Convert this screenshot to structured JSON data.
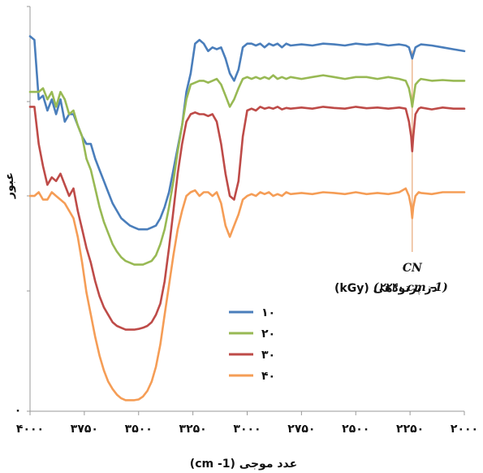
{
  "chart_data": {
    "type": "line",
    "title": "",
    "xlabel": "عدد موجی (cm -1)",
    "ylabel": "عبور",
    "x_reversed": true,
    "xlim": [
      2000,
      4000
    ],
    "xticks": [
      4000,
      3750,
      3500,
      3250,
      3000,
      2750,
      2500,
      2250,
      2000
    ],
    "xtick_labels": [
      "۴۰۰۰",
      "۳۷۵۰",
      "۳۵۰۰",
      "۳۲۵۰",
      "۳۰۰۰",
      "۲۷۵۰",
      "۲۵۰۰",
      "۲۲۵۰",
      "۲۰۰۰"
    ],
    "ytick_labels": [
      "۰"
    ],
    "ylim": [
      0,
      100
    ],
    "legend": {
      "title": "دز پرتودهی (kGy)",
      "placement": "center"
    },
    "annotation": {
      "label": "CN",
      "sublabel": "(۲۲۴۰ cm -1)",
      "x": 2240
    },
    "series": [
      {
        "name": "۱۰",
        "color": "#4a7ebb",
        "x": [
          4000,
          3980,
          3960,
          3940,
          3920,
          3900,
          3880,
          3860,
          3840,
          3820,
          3800,
          3780,
          3760,
          3740,
          3720,
          3700,
          3680,
          3660,
          3640,
          3620,
          3600,
          3580,
          3560,
          3540,
          3520,
          3500,
          3480,
          3460,
          3440,
          3420,
          3400,
          3380,
          3360,
          3340,
          3320,
          3300,
          3280,
          3260,
          3240,
          3220,
          3200,
          3180,
          3160,
          3140,
          3120,
          3100,
          3080,
          3060,
          3040,
          3020,
          3000,
          2980,
          2960,
          2940,
          2920,
          2900,
          2880,
          2860,
          2840,
          2820,
          2800,
          2750,
          2700,
          2650,
          2600,
          2550,
          2500,
          2450,
          2400,
          2350,
          2300,
          2270,
          2255,
          2245,
          2240,
          2235,
          2225,
          2210,
          2200,
          2150,
          2100,
          2050,
          2000
        ],
        "y": [
          99,
          98,
          82,
          83,
          79,
          82,
          78,
          82,
          76,
          78,
          78,
          75,
          72,
          70,
          70,
          66,
          63,
          60,
          57,
          54,
          52,
          50,
          49,
          48,
          47.5,
          47,
          47,
          47,
          47.5,
          48,
          50,
          53,
          57,
          63,
          69,
          75,
          84,
          89,
          97,
          98,
          97,
          95,
          96,
          95.5,
          96,
          93,
          89,
          87,
          90,
          96,
          97,
          97,
          96.5,
          97,
          96,
          97,
          96.5,
          97,
          96,
          97,
          96.5,
          96.8,
          96.5,
          97,
          96.8,
          96.5,
          97,
          96.7,
          97,
          96.5,
          96.8,
          96.5,
          96,
          94,
          93,
          94,
          96,
          96.5,
          96.8,
          96.5,
          96,
          95.5,
          95
        ]
      },
      {
        "name": "۲۰",
        "color": "#98b954",
        "x": [
          4000,
          3980,
          3960,
          3940,
          3920,
          3900,
          3880,
          3860,
          3840,
          3820,
          3800,
          3780,
          3760,
          3740,
          3720,
          3700,
          3680,
          3660,
          3640,
          3620,
          3600,
          3580,
          3560,
          3540,
          3520,
          3500,
          3480,
          3460,
          3440,
          3420,
          3400,
          3380,
          3360,
          3340,
          3320,
          3300,
          3280,
          3260,
          3240,
          3220,
          3200,
          3180,
          3160,
          3140,
          3120,
          3100,
          3080,
          3060,
          3040,
          3020,
          3000,
          2980,
          2960,
          2940,
          2920,
          2900,
          2880,
          2860,
          2840,
          2820,
          2800,
          2750,
          2700,
          2650,
          2600,
          2550,
          2500,
          2450,
          2400,
          2350,
          2300,
          2270,
          2255,
          2245,
          2240,
          2235,
          2225,
          2210,
          2200,
          2150,
          2100,
          2050,
          2000
        ],
        "y": [
          84,
          84,
          84,
          85,
          82,
          84,
          80,
          84,
          82,
          78,
          79,
          75,
          72,
          66,
          63,
          58,
          53,
          49,
          46,
          43,
          41,
          39.5,
          38.5,
          38,
          37.5,
          37.5,
          37.5,
          38,
          38.5,
          40,
          43,
          47,
          53,
          60,
          68,
          75,
          82,
          86,
          86.5,
          87,
          87,
          86.5,
          87,
          87.5,
          86,
          83,
          80,
          82,
          85,
          87.5,
          88,
          87.5,
          88,
          87.5,
          88,
          87.5,
          88.5,
          87.5,
          88,
          87.5,
          88,
          87.5,
          88,
          88.5,
          88,
          87.5,
          88,
          88,
          87.5,
          88,
          87.5,
          87,
          85,
          82,
          80,
          82,
          86,
          87,
          87.5,
          87,
          87.2,
          87,
          87
        ]
      },
      {
        "name": "۳۰",
        "color": "#be4b48",
        "x": [
          4000,
          3980,
          3960,
          3940,
          3920,
          3900,
          3880,
          3860,
          3840,
          3820,
          3800,
          3780,
          3760,
          3740,
          3720,
          3700,
          3680,
          3660,
          3640,
          3620,
          3600,
          3580,
          3560,
          3540,
          3520,
          3500,
          3480,
          3460,
          3440,
          3420,
          3400,
          3380,
          3360,
          3340,
          3320,
          3300,
          3280,
          3260,
          3240,
          3220,
          3200,
          3180,
          3160,
          3140,
          3120,
          3100,
          3080,
          3060,
          3040,
          3020,
          3000,
          2980,
          2960,
          2940,
          2920,
          2900,
          2880,
          2860,
          2840,
          2820,
          2800,
          2750,
          2700,
          2650,
          2600,
          2550,
          2500,
          2450,
          2400,
          2350,
          2300,
          2270,
          2255,
          2245,
          2240,
          2235,
          2225,
          2210,
          2200,
          2150,
          2100,
          2050,
          2000
        ],
        "y": [
          80,
          80,
          70,
          64,
          59,
          61,
          60,
          62,
          59,
          56,
          58,
          52,
          47,
          42,
          38,
          33,
          29,
          26,
          24,
          22,
          21,
          20.5,
          20,
          20,
          20,
          20.2,
          20.5,
          21,
          22,
          24,
          27,
          33,
          42,
          52,
          62,
          70,
          76,
          78,
          78.5,
          78,
          78,
          77.5,
          78,
          76,
          70,
          62,
          56,
          55,
          60,
          72,
          79,
          79.5,
          79,
          80,
          79.5,
          79.8,
          79.5,
          80,
          79.3,
          79.7,
          79.5,
          79.8,
          79.5,
          80,
          79.7,
          79.5,
          80,
          79.6,
          79.8,
          79.5,
          79.8,
          79.5,
          76,
          72,
          68,
          72,
          78,
          79.5,
          79.8,
          79.3,
          79.8,
          79.5,
          79.5
        ]
      },
      {
        "name": "۴۰",
        "color": "#f59d56",
        "x": [
          4000,
          3980,
          3960,
          3940,
          3920,
          3900,
          3880,
          3860,
          3840,
          3820,
          3800,
          3780,
          3760,
          3740,
          3720,
          3700,
          3680,
          3660,
          3640,
          3620,
          3600,
          3580,
          3560,
          3540,
          3520,
          3500,
          3480,
          3460,
          3440,
          3420,
          3400,
          3380,
          3360,
          3340,
          3320,
          3300,
          3280,
          3260,
          3240,
          3220,
          3200,
          3180,
          3160,
          3140,
          3120,
          3100,
          3080,
          3060,
          3040,
          3020,
          3000,
          2980,
          2960,
          2940,
          2920,
          2900,
          2880,
          2860,
          2840,
          2820,
          2800,
          2750,
          2700,
          2650,
          2600,
          2550,
          2500,
          2450,
          2400,
          2350,
          2300,
          2270,
          2255,
          2245,
          2240,
          2235,
          2225,
          2210,
          2200,
          2150,
          2100,
          2050,
          2000
        ],
        "y": [
          56,
          56,
          57,
          55,
          55,
          57,
          56,
          55,
          54,
          52,
          50,
          45,
          38,
          30,
          24,
          18,
          13,
          9,
          6,
          4,
          2.5,
          1.5,
          1,
          1,
          1,
          1.2,
          2,
          3.5,
          6,
          10,
          16,
          24,
          32,
          40,
          47,
          52,
          56,
          57,
          57.5,
          56,
          57,
          57,
          56,
          57,
          54,
          48,
          45,
          48,
          51,
          55,
          56,
          56.5,
          56,
          57,
          56.5,
          57,
          56,
          56.5,
          56,
          57,
          56.5,
          56.8,
          56.5,
          57,
          56.8,
          56.5,
          57,
          56.5,
          56.8,
          56.5,
          57,
          58,
          56,
          53,
          50,
          53,
          56,
          57,
          56.8,
          56.5,
          57,
          57,
          57
        ]
      }
    ]
  }
}
